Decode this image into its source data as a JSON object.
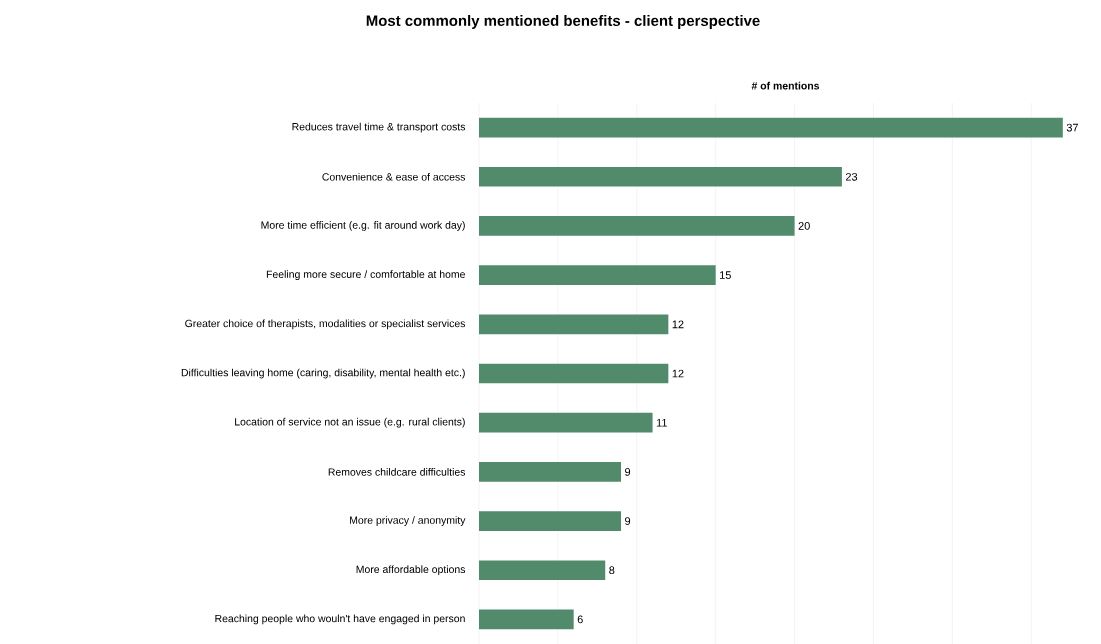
{
  "chart_data": {
    "type": "bar",
    "orientation": "horizontal",
    "title": "Most commonly mentioned benefits - client perspective",
    "xlabel": "**# of mentions**",
    "categories": [
      "Reduces travel time & transport costs",
      "Convenience & ease of access",
      "More time efficient (e.g. fit around work day)",
      "Feeling more secure / comfortable at home",
      "Greater choice of therapists, modalities or specialist services",
      "Difficulties leaving home (caring, disability, mental health etc.)",
      "Location of service not an issue (e.g. rural clients)",
      "Removes childcare difficulties",
      "More privacy / anonymity",
      "More affordable options",
      "Reaching people who wouln't have engaged in person"
    ],
    "values": [
      37,
      23,
      20,
      15,
      12,
      12,
      11,
      9,
      9,
      8,
      6
    ],
    "color": "#518b6b",
    "data_labels": true,
    "grid": "x",
    "tick_labels": "y"
  }
}
